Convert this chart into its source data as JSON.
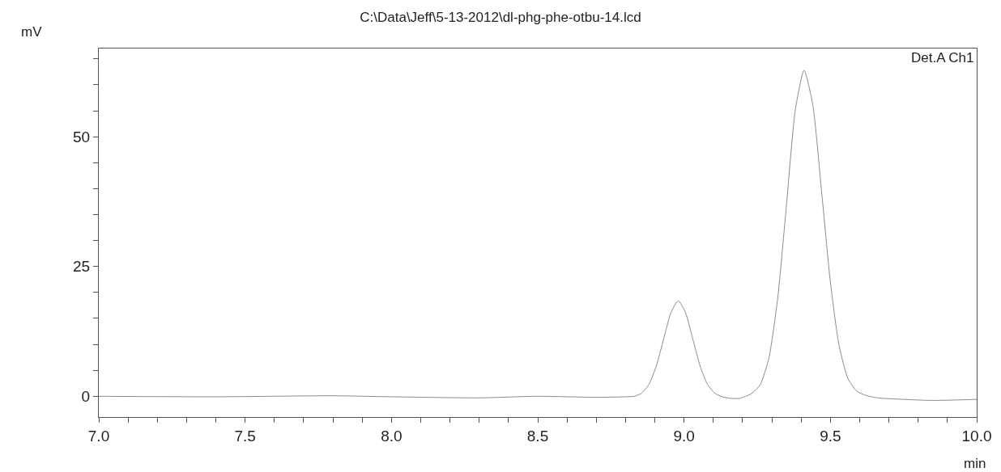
{
  "chart_data": {
    "type": "line",
    "title": "C:\\Data\\Jeff\\5-13-2012\\dl-phg-phe-otbu-14.lcd",
    "xlabel": "min",
    "ylabel": "mV",
    "annotations": [
      "Det.A Ch1"
    ],
    "xlim": [
      7.0,
      10.0
    ],
    "ylim": [
      -4,
      67
    ],
    "xticks": [
      {
        "value": 7.0,
        "label": "7.0"
      },
      {
        "value": 7.1,
        "label": null
      },
      {
        "value": 7.2,
        "label": null
      },
      {
        "value": 7.3,
        "label": null
      },
      {
        "value": 7.4,
        "label": null
      },
      {
        "value": 7.5,
        "label": "7.5"
      },
      {
        "value": 7.6,
        "label": null
      },
      {
        "value": 7.7,
        "label": null
      },
      {
        "value": 7.8,
        "label": null
      },
      {
        "value": 7.9,
        "label": null
      },
      {
        "value": 8.0,
        "label": "8.0"
      },
      {
        "value": 8.1,
        "label": null
      },
      {
        "value": 8.2,
        "label": null
      },
      {
        "value": 8.3,
        "label": null
      },
      {
        "value": 8.4,
        "label": null
      },
      {
        "value": 8.5,
        "label": "8.5"
      },
      {
        "value": 8.6,
        "label": null
      },
      {
        "value": 8.7,
        "label": null
      },
      {
        "value": 8.8,
        "label": null
      },
      {
        "value": 8.9,
        "label": null
      },
      {
        "value": 9.0,
        "label": "9.0"
      },
      {
        "value": 9.1,
        "label": null
      },
      {
        "value": 9.2,
        "label": null
      },
      {
        "value": 9.3,
        "label": null
      },
      {
        "value": 9.4,
        "label": null
      },
      {
        "value": 9.5,
        "label": "9.5"
      },
      {
        "value": 9.6,
        "label": null
      },
      {
        "value": 9.7,
        "label": null
      },
      {
        "value": 9.8,
        "label": null
      },
      {
        "value": 9.9,
        "label": null
      },
      {
        "value": 10.0,
        "label": "10.0"
      }
    ],
    "yticks": [
      0,
      {
        "value": 5,
        "label": null
      },
      {
        "value": 10,
        "label": null
      },
      {
        "value": 15,
        "label": null
      },
      {
        "value": 20,
        "label": null
      },
      25,
      {
        "value": 30,
        "label": null
      },
      {
        "value": 35,
        "label": null
      },
      {
        "value": 40,
        "label": null
      },
      {
        "value": 45,
        "label": null
      },
      50,
      {
        "value": 55,
        "label": null
      },
      {
        "value": 60,
        "label": null
      },
      {
        "value": 65,
        "label": null
      }
    ],
    "marker": "none",
    "line_style": "solid",
    "series": [
      {
        "color": "#8c8c8c",
        "x": [
          7.0,
          7.4,
          7.8,
          8.0,
          8.3,
          8.5,
          8.7,
          8.8,
          8.83,
          8.855,
          8.88,
          8.905,
          8.93,
          8.955,
          8.98,
          9.005,
          9.03,
          9.055,
          9.08,
          9.105,
          9.13,
          9.16,
          9.19,
          9.23,
          9.26,
          9.29,
          9.32,
          9.35,
          9.38,
          9.41,
          9.44,
          9.47,
          9.5,
          9.53,
          9.56,
          9.59,
          9.62,
          9.66,
          9.75,
          9.85,
          10.0
        ],
        "values": [
          0.0,
          -0.1,
          0.1,
          -0.1,
          -0.3,
          0.0,
          -0.2,
          -0.1,
          0.0,
          0.6,
          2.3,
          5.8,
          11.0,
          16.1,
          18.4,
          16.1,
          11.0,
          5.8,
          2.3,
          0.6,
          -0.1,
          -0.4,
          -0.4,
          0.5,
          2.2,
          7.4,
          18.9,
          36.9,
          55.1,
          62.8,
          56.1,
          39.4,
          22.0,
          9.7,
          3.4,
          1.0,
          0.2,
          -0.3,
          -0.6,
          -0.8,
          -0.6
        ]
      }
    ]
  }
}
